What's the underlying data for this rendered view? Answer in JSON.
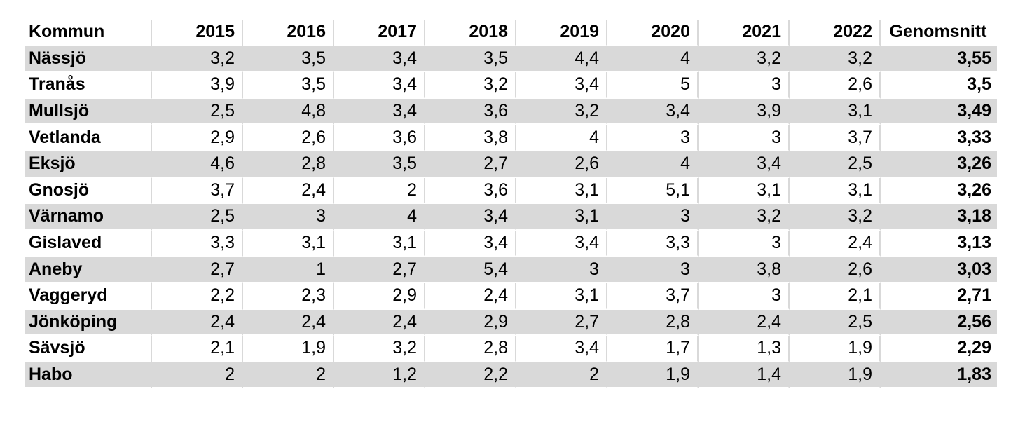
{
  "table": {
    "columns": [
      "Kommun",
      "2015",
      "2016",
      "2017",
      "2018",
      "2019",
      "2020",
      "2021",
      "2022",
      "Genomsnitt"
    ],
    "rows": [
      {
        "kommun": "Nässjö",
        "values": [
          "3,2",
          "3,5",
          "3,4",
          "3,5",
          "4,4",
          "4",
          "3,2",
          "3,2"
        ],
        "genomsnitt": "3,55"
      },
      {
        "kommun": "Tranås",
        "values": [
          "3,9",
          "3,5",
          "3,4",
          "3,2",
          "3,4",
          "5",
          "3",
          "2,6"
        ],
        "genomsnitt": "3,5"
      },
      {
        "kommun": "Mullsjö",
        "values": [
          "2,5",
          "4,8",
          "3,4",
          "3,6",
          "3,2",
          "3,4",
          "3,9",
          "3,1"
        ],
        "genomsnitt": "3,49"
      },
      {
        "kommun": "Vetlanda",
        "values": [
          "2,9",
          "2,6",
          "3,6",
          "3,8",
          "4",
          "3",
          "3",
          "3,7"
        ],
        "genomsnitt": "3,33"
      },
      {
        "kommun": "Eksjö",
        "values": [
          "4,6",
          "2,8",
          "3,5",
          "2,7",
          "2,6",
          "4",
          "3,4",
          "2,5"
        ],
        "genomsnitt": "3,26"
      },
      {
        "kommun": "Gnosjö",
        "values": [
          "3,7",
          "2,4",
          "2",
          "3,6",
          "3,1",
          "5,1",
          "3,1",
          "3,1"
        ],
        "genomsnitt": "3,26"
      },
      {
        "kommun": "Värnamo",
        "values": [
          "2,5",
          "3",
          "4",
          "3,4",
          "3,1",
          "3",
          "3,2",
          "3,2"
        ],
        "genomsnitt": "3,18"
      },
      {
        "kommun": "Gislaved",
        "values": [
          "3,3",
          "3,1",
          "3,1",
          "3,4",
          "3,4",
          "3,3",
          "3",
          "2,4"
        ],
        "genomsnitt": "3,13"
      },
      {
        "kommun": "Aneby",
        "values": [
          "2,7",
          "1",
          "2,7",
          "5,4",
          "3",
          "3",
          "3,8",
          "2,6"
        ],
        "genomsnitt": "3,03"
      },
      {
        "kommun": "Vaggeryd",
        "values": [
          "2,2",
          "2,3",
          "2,9",
          "2,4",
          "3,1",
          "3,7",
          "3",
          "2,1"
        ],
        "genomsnitt": "2,71"
      },
      {
        "kommun": "Jönköping",
        "values": [
          "2,4",
          "2,4",
          "2,4",
          "2,9",
          "2,7",
          "2,8",
          "2,4",
          "2,5"
        ],
        "genomsnitt": "2,56"
      },
      {
        "kommun": "Sävsjö",
        "values": [
          "2,1",
          "1,9",
          "3,2",
          "2,8",
          "3,4",
          "1,7",
          "1,3",
          "1,9"
        ],
        "genomsnitt": "2,29"
      },
      {
        "kommun": "Habo",
        "values": [
          "2",
          "2",
          "1,2",
          "2,2",
          "2",
          "1,9",
          "1,4",
          "1,9"
        ],
        "genomsnitt": "1,83"
      }
    ],
    "colors": {
      "band": "#d9d9d9",
      "grid": "#d9d9d9",
      "text": "#000000",
      "background": "#ffffff"
    }
  },
  "chart_data": {
    "type": "table",
    "title": "",
    "columns": [
      "Kommun",
      "2015",
      "2016",
      "2017",
      "2018",
      "2019",
      "2020",
      "2021",
      "2022",
      "Genomsnitt"
    ],
    "decimal_separator": ",",
    "rows": [
      [
        "Nässjö",
        3.2,
        3.5,
        3.4,
        3.5,
        4.4,
        4.0,
        3.2,
        3.2,
        3.55
      ],
      [
        "Tranås",
        3.9,
        3.5,
        3.4,
        3.2,
        3.4,
        5.0,
        3.0,
        2.6,
        3.5
      ],
      [
        "Mullsjö",
        2.5,
        4.8,
        3.4,
        3.6,
        3.2,
        3.4,
        3.9,
        3.1,
        3.49
      ],
      [
        "Vetlanda",
        2.9,
        2.6,
        3.6,
        3.8,
        4.0,
        3.0,
        3.0,
        3.7,
        3.33
      ],
      [
        "Eksjö",
        4.6,
        2.8,
        3.5,
        2.7,
        2.6,
        4.0,
        3.4,
        2.5,
        3.26
      ],
      [
        "Gnosjö",
        3.7,
        2.4,
        2.0,
        3.6,
        3.1,
        5.1,
        3.1,
        3.1,
        3.26
      ],
      [
        "Värnamo",
        2.5,
        3.0,
        4.0,
        3.4,
        3.1,
        3.0,
        3.2,
        3.2,
        3.18
      ],
      [
        "Gislaved",
        3.3,
        3.1,
        3.1,
        3.4,
        3.4,
        3.3,
        3.0,
        2.4,
        3.13
      ],
      [
        "Aneby",
        2.7,
        1.0,
        2.7,
        5.4,
        3.0,
        3.0,
        3.8,
        2.6,
        3.03
      ],
      [
        "Vaggeryd",
        2.2,
        2.3,
        2.9,
        2.4,
        3.1,
        3.7,
        3.0,
        2.1,
        2.71
      ],
      [
        "Jönköping",
        2.4,
        2.4,
        2.4,
        2.9,
        2.7,
        2.8,
        2.4,
        2.5,
        2.56
      ],
      [
        "Sävsjö",
        2.1,
        1.9,
        3.2,
        2.8,
        3.4,
        1.7,
        1.3,
        1.9,
        2.29
      ],
      [
        "Habo",
        2.0,
        2.0,
        1.2,
        2.2,
        2.0,
        1.9,
        1.4,
        1.9,
        1.83
      ]
    ]
  }
}
